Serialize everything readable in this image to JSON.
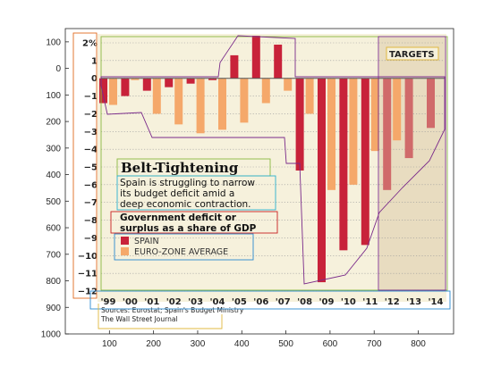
{
  "chart_data": {
    "type": "bar",
    "title": "Belt-Tightening",
    "subtitle_lines": [
      "Spain is struggling to narrow",
      "its budget deficit amid a",
      "deep economic contraction."
    ],
    "chart_label_lines": [
      "Government deficit or",
      "surplus as a share of GDP"
    ],
    "unit_label": "2%",
    "targets_label": "TARGETS",
    "source_lines": [
      "Sources: Eurostat; Spain's Budget Ministry",
      "The Wall Street Journal"
    ],
    "categories": [
      "'99",
      "'00",
      "'01",
      "'02",
      "'03",
      "'04",
      "'05",
      "'06",
      "'07",
      "'08",
      "'09",
      "'10",
      "'11",
      "'12",
      "'13",
      "'14"
    ],
    "series": [
      {
        "name": "SPAIN",
        "color": "#c8223a",
        "target_color": "#d06a6a",
        "values": [
          -1.4,
          -1.0,
          -0.7,
          -0.5,
          -0.3,
          -0.1,
          1.3,
          2.4,
          1.9,
          -5.2,
          -11.5,
          -9.7,
          -9.4,
          -6.3,
          -4.5,
          -2.8
        ]
      },
      {
        "name": "EURO-ZONE AVERAGE",
        "color": "#f5a86a",
        "target_color": "#f5a86a",
        "values": [
          -1.5,
          -0.1,
          -2.0,
          -2.6,
          -3.1,
          -2.9,
          -2.5,
          -1.4,
          -0.7,
          -2.0,
          -6.3,
          -6.0,
          -4.1,
          -3.5,
          null,
          null
        ]
      }
    ],
    "target_categories": [
      "'12",
      "'13",
      "'14"
    ],
    "inner_y_ticks": [
      "2%",
      "1",
      "0",
      "−1",
      "−2",
      "−3",
      "−4",
      "−5",
      "−6",
      "−7",
      "−8",
      "−9",
      "−10",
      "−11",
      "−12"
    ],
    "inner_ylim": [
      -12,
      2
    ],
    "outer_x_ticks": [
      "100",
      "200",
      "300",
      "400",
      "500",
      "600",
      "700",
      "800"
    ],
    "outer_y_ticks": [
      "100",
      "0",
      "100",
      "200",
      "300",
      "400",
      "500",
      "600",
      "700",
      "800",
      "900",
      "1000"
    ],
    "outer_xlim": [
      0,
      880
    ],
    "outer_ylim": [
      -150,
      1000
    ],
    "colors": {
      "background": "#f6f1dc",
      "spain": "#c8223a",
      "eurozone": "#f5a86a",
      "target_shade": "#e8dcc0",
      "outline_purple": "#7a2a8a"
    }
  }
}
